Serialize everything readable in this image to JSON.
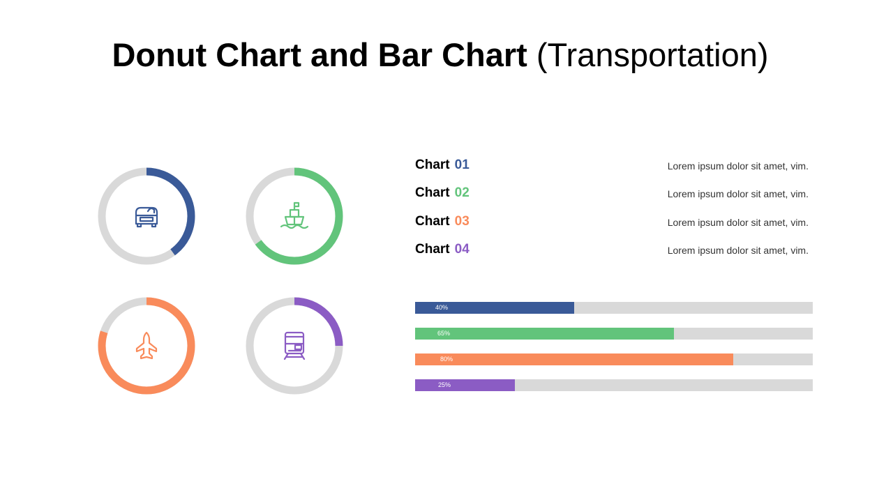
{
  "title": {
    "bold": "Donut Chart and Bar Chart",
    "light": "(Transportation)"
  },
  "colors": {
    "track": "#d9d9d9",
    "blue": "#3a5a98",
    "green": "#62c47b",
    "orange": "#f98b5b",
    "purple": "#8b5cc4"
  },
  "chart_data": [
    {
      "type": "pie",
      "variant": "donut",
      "slices": [
        {
          "label": "Chart 01",
          "value": 40,
          "color": "#3a5a98",
          "icon": "car-icon"
        },
        {
          "label": "Chart 02",
          "value": 65,
          "color": "#62c47b",
          "icon": "ship-icon"
        },
        {
          "label": "Chart 03",
          "value": 80,
          "color": "#f98b5b",
          "icon": "airplane-icon"
        },
        {
          "label": "Chart 04",
          "value": 25,
          "color": "#8b5cc4",
          "icon": "train-icon"
        }
      ]
    },
    {
      "type": "bar",
      "orientation": "horizontal",
      "categories": [
        "Chart 01",
        "Chart 02",
        "Chart 03",
        "Chart 04"
      ],
      "values": [
        40,
        65,
        80,
        25
      ],
      "value_labels": [
        "40%",
        "65%",
        "80%",
        "25%"
      ],
      "colors": [
        "#3a5a98",
        "#62c47b",
        "#f98b5b",
        "#8b5cc4"
      ],
      "xlim": [
        0,
        100
      ]
    }
  ],
  "legend": [
    {
      "label": "Chart",
      "num": "01",
      "color": "#3a5a98",
      "desc": "Lorem ipsum dolor sit amet, vim."
    },
    {
      "label": "Chart",
      "num": "02",
      "color": "#62c47b",
      "desc": "Lorem ipsum dolor sit amet, vim."
    },
    {
      "label": "Chart",
      "num": "03",
      "color": "#f98b5b",
      "desc": "Lorem ipsum dolor sit amet, vim."
    },
    {
      "label": "Chart",
      "num": "04",
      "color": "#8b5cc4",
      "desc": "Lorem ipsum dolor sit amet, vim."
    }
  ]
}
